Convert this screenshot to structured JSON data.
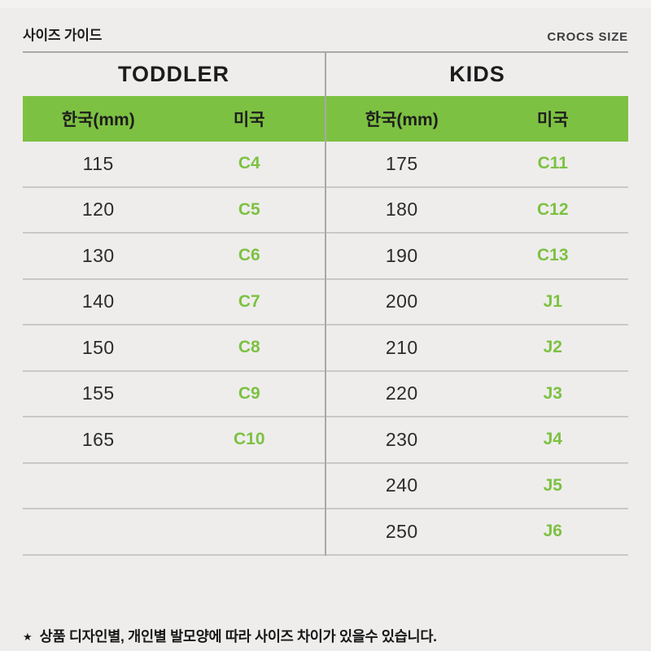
{
  "header": {
    "title": "사이즈 가이드",
    "right_label": "CROCS SIZE"
  },
  "colors": {
    "accent_green": "#7dc142",
    "background": "#eeedec"
  },
  "tables": [
    {
      "title": "TODDLER",
      "columns": [
        "한국(mm)",
        "미국"
      ],
      "rows": [
        [
          "115",
          "C4"
        ],
        [
          "120",
          "C5"
        ],
        [
          "130",
          "C6"
        ],
        [
          "140",
          "C7"
        ],
        [
          "150",
          "C8"
        ],
        [
          "155",
          "C9"
        ],
        [
          "165",
          "C10"
        ]
      ],
      "row_slots": 9
    },
    {
      "title": "KIDS",
      "columns": [
        "한국(mm)",
        "미국"
      ],
      "rows": [
        [
          "175",
          "C11"
        ],
        [
          "180",
          "C12"
        ],
        [
          "190",
          "C13"
        ],
        [
          "200",
          "J1"
        ],
        [
          "210",
          "J2"
        ],
        [
          "220",
          "J3"
        ],
        [
          "230",
          "J4"
        ],
        [
          "240",
          "J5"
        ],
        [
          "250",
          "J6"
        ]
      ],
      "row_slots": 9
    }
  ],
  "footnote": {
    "star": "★",
    "text": "상품 디자인별, 개인별 발모양에 따라 사이즈 차이가 있을수 있습니다."
  }
}
